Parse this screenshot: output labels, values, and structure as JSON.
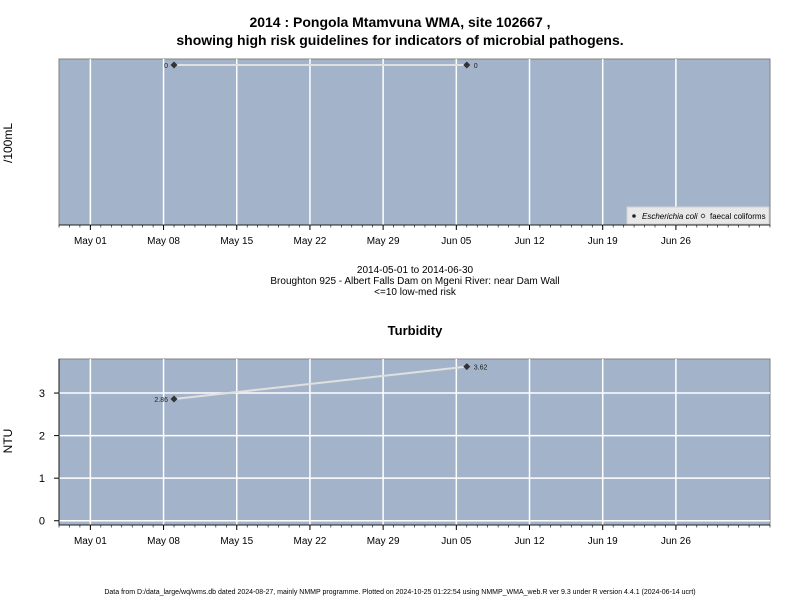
{
  "page": {
    "title_line1": "2014 : Pongola Mtamvuna WMA, site 102667 ,",
    "title_line2": "showing high risk guidelines for indicators of microbial pathogens.",
    "date_range": "2014-05-01 to 2014-06-30",
    "site_description": "Broughton 925 - Albert Falls Dam on Mgeni River: near Dam Wall",
    "risk_note": "<=10 low-med risk",
    "footer": "Data from D:/data_large/wq/wms.db dated 2024-08-27, mainly NMMP programme. Plotted on 2024-10-25 01:22:54 using NMMP_WMA_web.R ver 9.3 under R version 4.4.1 (2024-06-14 ucrt)"
  },
  "colors": {
    "panel_bg": "#a3b3ca",
    "grid": "#ffffff",
    "series_line": "#e0e0e0",
    "point": "#333333"
  },
  "chart_data": [
    {
      "type": "line",
      "title": "",
      "xlabel": "",
      "ylabel": "/100mL",
      "x_ticks": [
        "May 01",
        "May 08",
        "May 15",
        "May 22",
        "May 29",
        "Jun 05",
        "Jun 12",
        "Jun 19",
        "Jun 26"
      ],
      "xlim": [
        "2014-04-28",
        "2014-07-05"
      ],
      "legend": {
        "placement": "bottom-right",
        "entries": [
          "Escherichia coli",
          "faecal coliforms"
        ]
      },
      "series": [
        {
          "name": "Escherichia coli",
          "points": [
            {
              "x": "2014-05-09",
              "y": 0,
              "label": "0"
            },
            {
              "x": "2014-06-06",
              "y": 0,
              "label": "0"
            }
          ]
        }
      ]
    },
    {
      "type": "line",
      "title": "Turbidity",
      "xlabel": "",
      "ylabel": "NTU",
      "x_ticks": [
        "May 01",
        "May 08",
        "May 15",
        "May 22",
        "May 29",
        "Jun 05",
        "Jun 12",
        "Jun 19",
        "Jun 26"
      ],
      "y_ticks": [
        "0",
        "1",
        "2",
        "3"
      ],
      "xlim": [
        "2014-04-28",
        "2014-07-05"
      ],
      "ylim": [
        -0.1,
        3.8
      ],
      "series": [
        {
          "points": [
            {
              "x": "2014-05-09",
              "y": 2.86,
              "label": "2.86"
            },
            {
              "x": "2014-06-06",
              "y": 3.62,
              "label": "3.62"
            }
          ]
        }
      ]
    }
  ]
}
